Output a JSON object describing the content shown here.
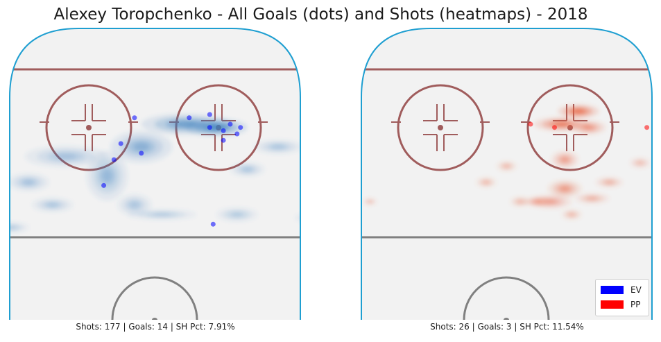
{
  "title": "Alexey Toropchenko - All Goals (dots) and Shots (heatmaps) - 2018",
  "colors": {
    "ice": "#f2f2f2",
    "boards": "#1f9fd1",
    "faceoff_red": "#a05c5c",
    "center_line": "#808080",
    "ev": "#0000ff",
    "pp": "#ff0000"
  },
  "chart_data": [
    {
      "type": "heatmap",
      "panel": "EV",
      "heat_color": "#3a7fbf",
      "caption": "Shots: 177 | Goals: 14 | SH Pct: 7.91%",
      "stats": {
        "shots": 177,
        "goals": 14,
        "sh_pct": 7.91
      },
      "goals": [
        [
          16,
          71
        ],
        [
          20,
          70
        ],
        [
          24,
          69
        ],
        [
          16,
          75
        ],
        [
          10,
          74
        ],
        [
          -6,
          74
        ],
        [
          -10,
          66
        ],
        [
          -4,
          63
        ],
        [
          -12,
          61
        ],
        [
          20,
          67
        ],
        [
          22,
          72
        ],
        [
          25,
          71
        ],
        [
          -15,
          53
        ],
        [
          17,
          41
        ]
      ],
      "shot_density": [
        [
          18,
          71,
          9,
          5,
          1.0
        ],
        [
          9,
          72,
          13,
          6,
          0.7
        ],
        [
          -4,
          65,
          9,
          9,
          0.45
        ],
        [
          -14,
          56,
          6,
          14,
          0.35
        ],
        [
          -26,
          62,
          12,
          6,
          0.25
        ],
        [
          -37,
          54,
          6,
          5,
          0.25
        ],
        [
          -6,
          47,
          5,
          6,
          0.2
        ],
        [
          -30,
          47,
          6,
          4,
          0.2
        ],
        [
          2,
          44,
          10,
          3,
          0.15
        ],
        [
          24,
          44,
          6,
          4,
          0.15
        ],
        [
          -42,
          40,
          5,
          3,
          0.15
        ],
        [
          36,
          65,
          7,
          4,
          0.2
        ],
        [
          27,
          58,
          5,
          4,
          0.2
        ],
        [
          46,
          43,
          5,
          3,
          0.15
        ]
      ]
    },
    {
      "type": "heatmap",
      "panel": "PP",
      "heat_color": "#e8603f",
      "caption": "Shots: 26 | Goals: 3 | SH Pct: 11.54%",
      "stats": {
        "shots": 26,
        "goals": 3,
        "sh_pct": 11.54
      },
      "goals": [
        [
          41,
          71
        ],
        [
          14,
          71
        ],
        [
          7,
          72
        ]
      ],
      "shot_density": [
        [
          21,
          76,
          6,
          4,
          1.0
        ],
        [
          16,
          72,
          8,
          4,
          0.85
        ],
        [
          24,
          71,
          5,
          4,
          0.55
        ],
        [
          17,
          61,
          4,
          5,
          0.45
        ],
        [
          17,
          52,
          5,
          5,
          0.5
        ],
        [
          9,
          48,
          4,
          3,
          0.35
        ],
        [
          13,
          48,
          6,
          4,
          0.4
        ],
        [
          30,
          54,
          4,
          3,
          0.3
        ],
        [
          25,
          49,
          5,
          3,
          0.3
        ],
        [
          0,
          59,
          3,
          3,
          0.25
        ],
        [
          -6,
          54,
          3,
          3,
          0.25
        ],
        [
          19,
          44,
          3,
          3,
          0.25
        ],
        [
          4,
          48,
          3,
          3,
          0.25
        ],
        [
          -40,
          48,
          2,
          2,
          0.2
        ],
        [
          39,
          60,
          3,
          3,
          0.2
        ]
      ]
    }
  ],
  "legend": [
    {
      "label": "EV",
      "color": "#0000ff"
    },
    {
      "label": "PP",
      "color": "#ff0000"
    }
  ]
}
